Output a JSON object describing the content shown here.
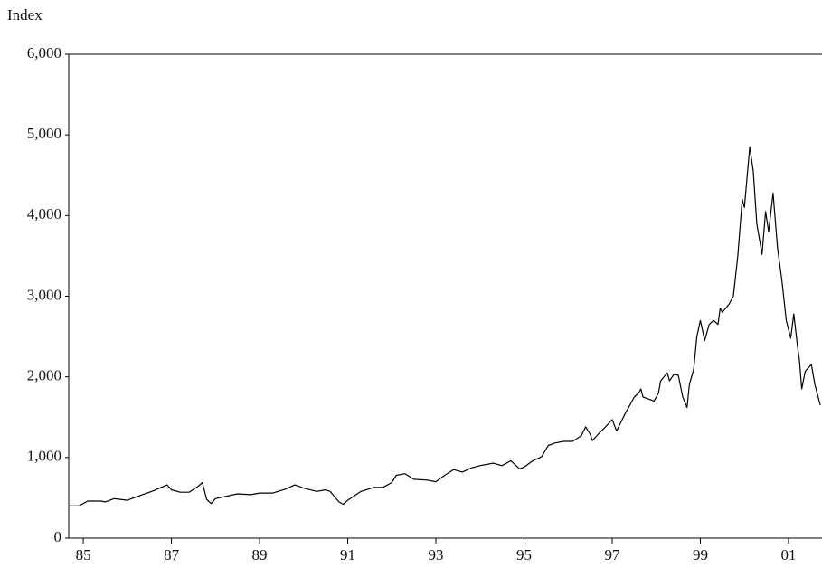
{
  "chart_data": {
    "type": "line",
    "y_axis_label": "Index",
    "x": [
      1984.67,
      1984.9,
      1985.1,
      1985.4,
      1985.5,
      1985.7,
      1986.0,
      1986.3,
      1986.6,
      1986.9,
      1987.0,
      1987.2,
      1987.4,
      1987.6,
      1987.7,
      1987.8,
      1987.9,
      1988.0,
      1988.5,
      1988.8,
      1989.0,
      1989.3,
      1989.6,
      1989.8,
      1990.0,
      1990.3,
      1990.5,
      1990.6,
      1990.8,
      1990.9,
      1991.0,
      1991.3,
      1991.6,
      1991.8,
      1992.0,
      1992.1,
      1992.3,
      1992.5,
      1992.8,
      1993.0,
      1993.2,
      1993.4,
      1993.6,
      1993.8,
      1994.0,
      1994.3,
      1994.5,
      1994.7,
      1994.9,
      1995.0,
      1995.2,
      1995.4,
      1995.55,
      1995.7,
      1995.9,
      1996.1,
      1996.3,
      1996.4,
      1996.5,
      1996.55,
      1996.7,
      1996.85,
      1997.0,
      1997.05,
      1997.1,
      1997.3,
      1997.5,
      1997.6,
      1997.65,
      1997.7,
      1997.85,
      1997.95,
      1998.05,
      1998.1,
      1998.25,
      1998.3,
      1998.4,
      1998.5,
      1998.6,
      1998.7,
      1998.75,
      1998.85,
      1998.92,
      1999.0,
      1999.1,
      1999.2,
      1999.3,
      1999.4,
      1999.45,
      1999.5,
      1999.65,
      1999.75,
      1999.85,
      1999.95,
      2000.0,
      2000.12,
      2000.2,
      2000.28,
      2000.4,
      2000.48,
      2000.55,
      2000.65,
      2000.75,
      2000.85,
      2000.95,
      2001.05,
      2001.12,
      2001.2,
      2001.25,
      2001.3,
      2001.38,
      2001.48,
      2001.52,
      2001.6,
      2001.72
    ],
    "series": [
      {
        "name": "Index",
        "color": "#000000",
        "values": [
          400,
          400,
          460,
          460,
          450,
          490,
          470,
          530,
          590,
          660,
          600,
          570,
          570,
          640,
          690,
          480,
          430,
          490,
          550,
          540,
          560,
          560,
          610,
          660,
          620,
          580,
          600,
          580,
          450,
          420,
          470,
          580,
          630,
          630,
          690,
          780,
          800,
          730,
          720,
          700,
          780,
          850,
          820,
          870,
          900,
          930,
          900,
          960,
          860,
          880,
          960,
          1010,
          1150,
          1180,
          1200,
          1200,
          1270,
          1380,
          1290,
          1210,
          1300,
          1380,
          1470,
          1400,
          1330,
          1550,
          1750,
          1800,
          1850,
          1750,
          1720,
          1700,
          1800,
          1950,
          2050,
          1950,
          2030,
          2020,
          1750,
          1620,
          1900,
          2100,
          2500,
          2700,
          2450,
          2650,
          2700,
          2650,
          2850,
          2800,
          2900,
          3000,
          3500,
          4200,
          4100,
          4850,
          4550,
          3900,
          3520,
          4050,
          3800,
          4280,
          3600,
          3200,
          2700,
          2480,
          2780,
          2400,
          2200,
          1850,
          2070,
          2130,
          2150,
          1900,
          1650
        ]
      }
    ],
    "xlim": [
      1984.67,
      2001.76
    ],
    "xticks": [
      {
        "value": 1985,
        "label": "85"
      },
      {
        "value": 1987,
        "label": "87"
      },
      {
        "value": 1989,
        "label": "89"
      },
      {
        "value": 1991,
        "label": "91"
      },
      {
        "value": 1993,
        "label": "93"
      },
      {
        "value": 1995,
        "label": "95"
      },
      {
        "value": 1997,
        "label": "97"
      },
      {
        "value": 1999,
        "label": "99"
      },
      {
        "value": 2001,
        "label": "01"
      }
    ],
    "ylim": [
      0,
      6000
    ],
    "yticks": [
      0,
      {
        "value": 1000,
        "label": "1,000"
      },
      {
        "value": 2000,
        "label": "2,000"
      },
      {
        "value": 3000,
        "label": "3,000"
      },
      {
        "value": 4000,
        "label": "4,000"
      },
      {
        "value": 5000,
        "label": "5,000"
      },
      {
        "value": 6000,
        "label": "6,000"
      }
    ],
    "grid": false
  }
}
